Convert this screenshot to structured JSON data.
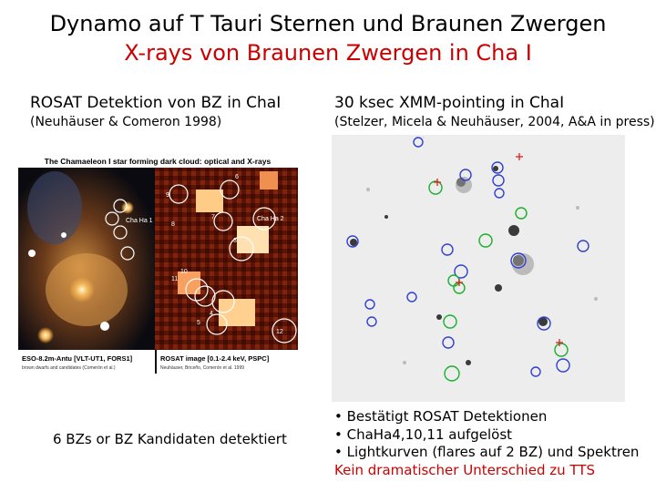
{
  "header": {
    "title": "Dynamo auf T Tauri Sternen und Braunen Zwergen",
    "subtitle": "X-rays von Braunen Zwergen in Cha I",
    "subtitle_color": "#cc0000"
  },
  "left": {
    "heading": "ROSAT Detektion von BZ in ChaI",
    "reference": "(Neuhäuser & Comeron 1998)",
    "figure": {
      "banner": "The Chamaeleon I star forming dark cloud: optical and X-rays",
      "labels": [
        "Cha Ha 1",
        "Cha Ha 2",
        "9",
        "6",
        "7",
        "3",
        "8",
        "11",
        "10",
        "5",
        "4",
        "12"
      ],
      "caption_optical": "ESO-8.2m-Antu [VLT-UT1, FORS1]",
      "caption_optical_sub": "brown dwarfs and candidates (Comerón et al.)",
      "caption_xray": "ROSAT image [0.1-2.4 keV, PSPC]",
      "caption_xray_sub": "Neuhäuser, Briceño, Comerón et al. 1999"
    },
    "note": "6 BZs or BZ Kandidaten detektiert"
  },
  "right": {
    "heading": "30 ksec XMM-pointing in ChaI",
    "reference": "(Stelzer, Micela & Neuhäuser, 2004, A&A in press)",
    "figure": {
      "marker_colors": {
        "blue": "#3040d0",
        "green": "#18b02a",
        "red": "#e02020"
      }
    },
    "bullets": [
      "• Bestätigt ROSAT Detektionen",
      "• ChaHa4,10,11 aufgelöst",
      "• Lightkurven (flares auf 2 BZ) und Spektren"
    ],
    "conclusion": "Kein dramatischer Unterschied zu TTS",
    "conclusion_color": "#cc0000"
  }
}
